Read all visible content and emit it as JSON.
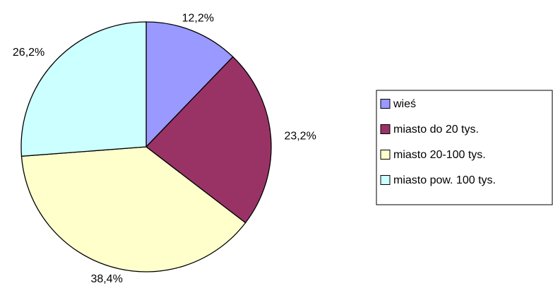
{
  "chart_data": {
    "type": "pie",
    "categories": [
      "wieś",
      "miasto do 20 tys.",
      "miasto 20-100 tys.",
      "miasto pow. 100 tys."
    ],
    "values": [
      12.2,
      23.2,
      38.4,
      26.2
    ],
    "value_labels": [
      "12,2%",
      "23,2%",
      "38,4%",
      "26,2%"
    ],
    "colors": [
      "#9999ff",
      "#993366",
      "#ffffcc",
      "#ccffff"
    ],
    "legend": "right"
  }
}
